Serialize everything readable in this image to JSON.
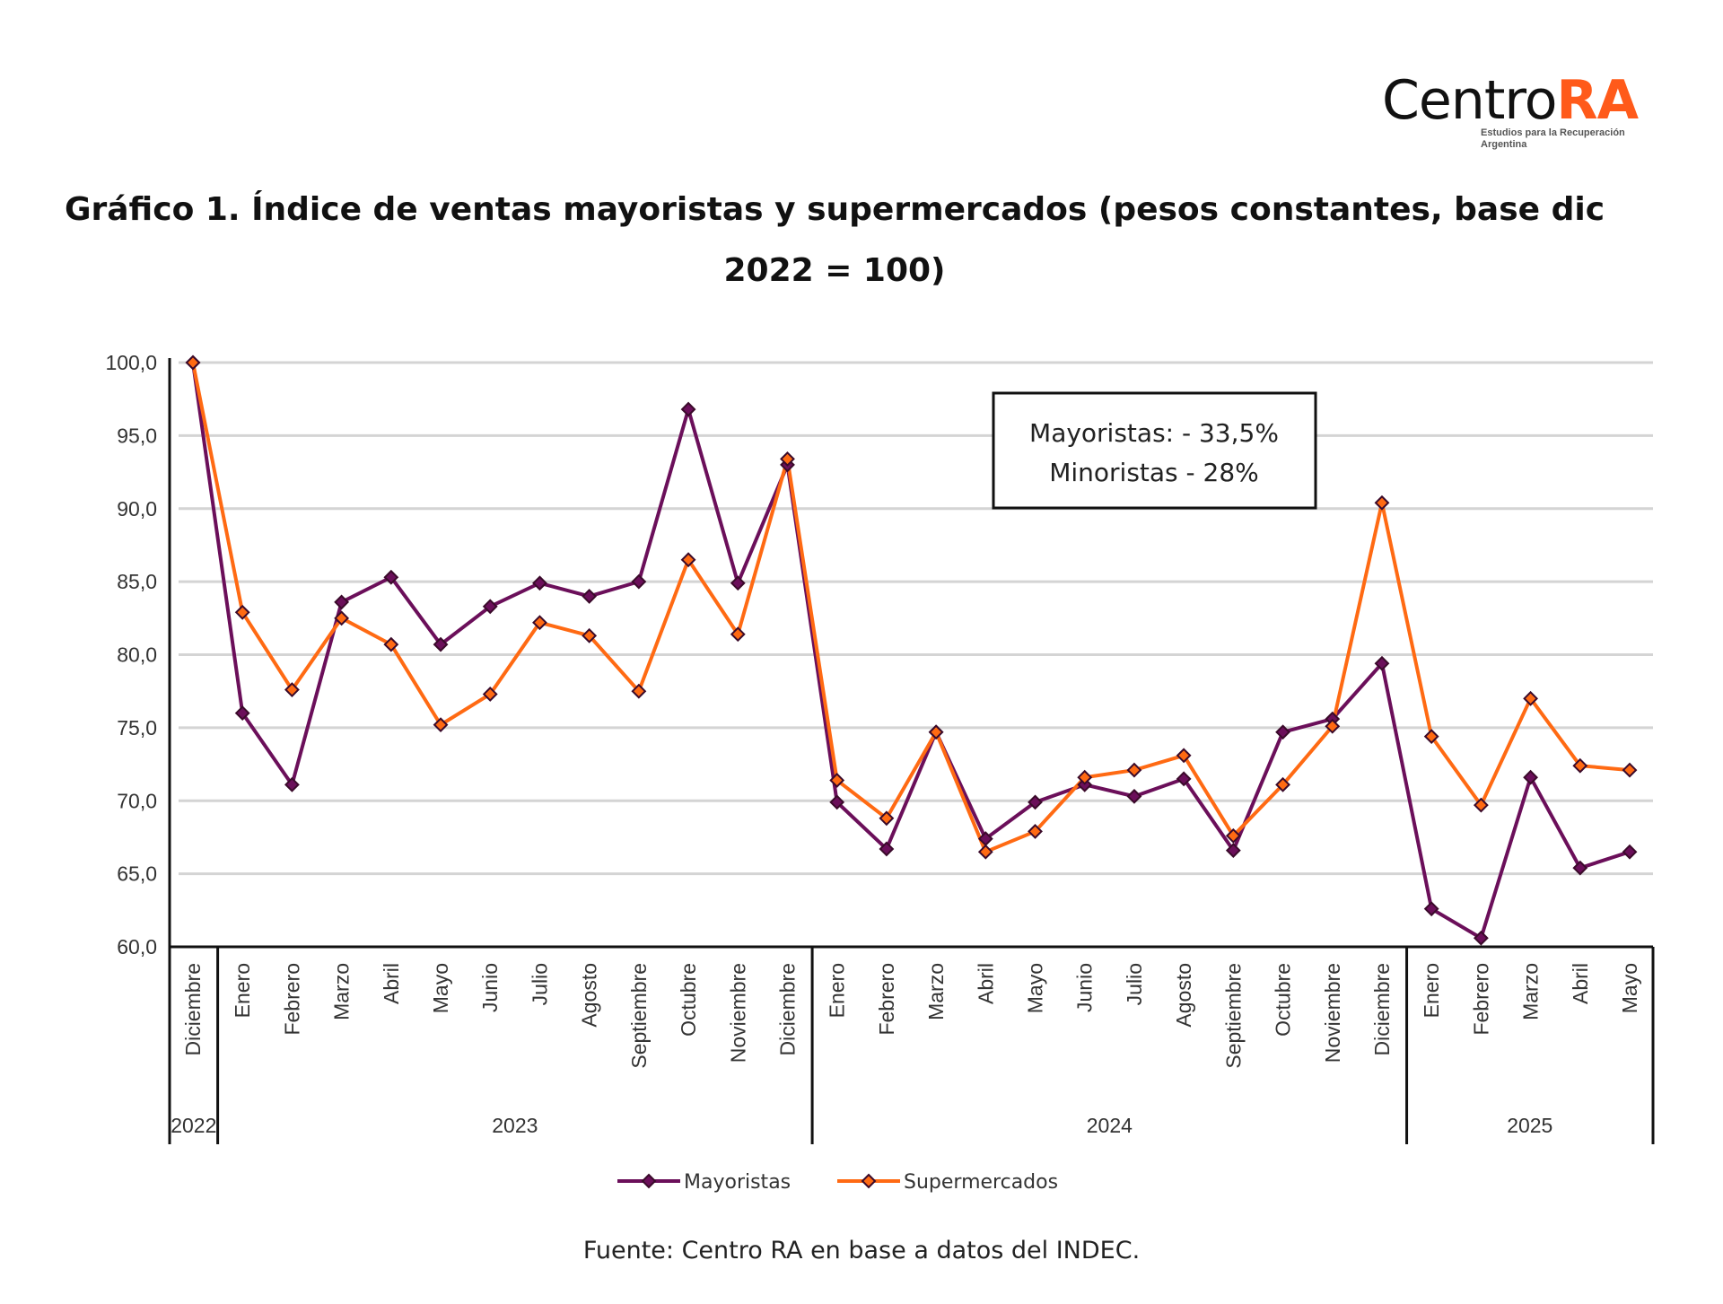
{
  "logo": {
    "text_main": "Centro",
    "text_accent": "RA",
    "tagline": "Estudios para la Recuperación Argentina"
  },
  "title_line1": "Gráfico 1. Índice de ventas mayoristas y supermercados (pesos constantes, base dic",
  "title_line2": "2022 = 100)",
  "source": "Fuente: Centro RA en base a datos del INDEC.",
  "chart_data": {
    "type": "line",
    "title": "Gráfico 1. Índice de ventas mayoristas y supermercados (pesos constantes, base dic 2022 = 100)",
    "xlabel": "",
    "ylabel": "",
    "ylim": [
      60,
      100
    ],
    "yticks": [
      "100,0",
      "95,0",
      "90,0",
      "85,0",
      "80,0",
      "75,0",
      "70,0",
      "65,0",
      "60,0"
    ],
    "grid": true,
    "legend_position": "bottom",
    "categories": [
      "Diciembre",
      "Enero",
      "Febrero",
      "Marzo",
      "Abril",
      "Mayo",
      "Junio",
      "Julio",
      "Agosto",
      "Septiembre",
      "Octubre",
      "Noviembre",
      "Diciembre",
      "Enero",
      "Febrero",
      "Marzo",
      "Abril",
      "Mayo",
      "Junio",
      "Julio",
      "Agosto",
      "Septiembre",
      "Octubre",
      "Noviembre",
      "Diciembre",
      "Enero",
      "Febrero",
      "Marzo",
      "Abril",
      "Mayo"
    ],
    "year_groups": [
      {
        "label": "2022",
        "count": 1
      },
      {
        "label": "2023",
        "count": 12
      },
      {
        "label": "2024",
        "count": 12
      },
      {
        "label": "2025",
        "count": 5
      }
    ],
    "series": [
      {
        "name": "Mayoristas",
        "color": "#6b0f5a",
        "values": [
          100.0,
          76.0,
          71.1,
          83.6,
          85.3,
          80.7,
          83.3,
          84.9,
          84.0,
          85.0,
          96.8,
          84.9,
          93.0,
          69.9,
          66.7,
          74.7,
          67.4,
          69.9,
          71.1,
          70.3,
          71.5,
          66.6,
          74.7,
          75.6,
          79.4,
          62.6,
          60.6,
          71.6,
          65.4,
          66.5
        ]
      },
      {
        "name": "Supermercados",
        "color": "#ff6a13",
        "values": [
          100.0,
          82.9,
          77.6,
          82.5,
          80.7,
          75.2,
          77.3,
          82.2,
          81.3,
          77.5,
          86.5,
          81.4,
          93.4,
          71.4,
          68.8,
          74.7,
          66.5,
          67.9,
          71.6,
          72.1,
          73.1,
          67.6,
          71.1,
          75.1,
          90.4,
          74.4,
          69.7,
          77.0,
          72.4,
          72.1
        ]
      }
    ],
    "annotation": {
      "line1": "Mayoristas: - 33,5%",
      "line2": "Minoristas - 28%"
    }
  }
}
